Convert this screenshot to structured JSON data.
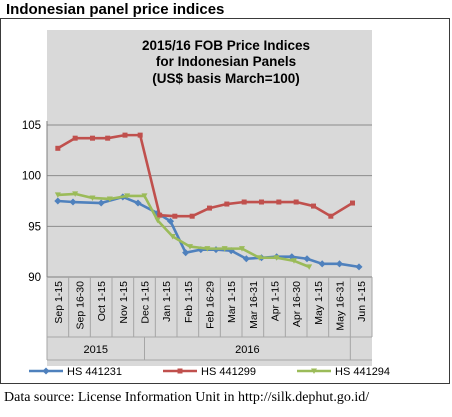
{
  "page": {
    "heading": "Indonesian panel price indices",
    "source_note": "Data source: License Information Unit in http://silk.dephut.go.id/"
  },
  "chart_data": {
    "type": "line",
    "title_lines": [
      "2015/16 FOB Price Indices",
      "for Indonesian Panels",
      "(US$ basis March=100)"
    ],
    "x": [
      "Sep 1-15",
      "Sep 16-30",
      "Oct 1-15",
      "Nov 1-15",
      "Dec 1-15",
      "Jan 1-15",
      "Feb 1-15",
      "Feb 16-29",
      "Mar 1-15",
      "Mar 16-31",
      "Apr 1-15",
      "Apr 16-30",
      "May 1-15",
      "May 16-31",
      "Jun 1-15"
    ],
    "x_positions": [
      0,
      1,
      2,
      3,
      4,
      5,
      6,
      7,
      8,
      9,
      10,
      11,
      12,
      13,
      14
    ],
    "year_groups": [
      {
        "label": "2015",
        "start": 0,
        "end": 4.5
      },
      {
        "label": "2016",
        "start": 4.5,
        "end": 14
      }
    ],
    "series": [
      {
        "name": "HS 441231",
        "color": "#4f81bd",
        "points": [
          [
            0,
            97.5
          ],
          [
            0.7,
            97.4
          ],
          [
            2,
            97.3
          ],
          [
            3,
            97.9
          ],
          [
            3.7,
            97.3
          ],
          [
            4.6,
            96.3
          ],
          [
            5.2,
            95.5
          ],
          [
            5.9,
            92.4
          ],
          [
            6.6,
            92.7
          ],
          [
            7.3,
            92.7
          ],
          [
            8,
            92.6
          ],
          [
            8.7,
            91.8
          ],
          [
            9.4,
            91.9
          ],
          [
            10.1,
            92.0
          ],
          [
            10.8,
            92.0
          ],
          [
            11.5,
            91.8
          ],
          [
            12.2,
            91.3
          ],
          [
            13,
            91.3
          ],
          [
            13.9,
            91.0
          ]
        ]
      },
      {
        "name": "HS 441299",
        "color": "#c0504d",
        "points": [
          [
            0,
            102.7
          ],
          [
            0.8,
            103.7
          ],
          [
            1.6,
            103.7
          ],
          [
            2.3,
            103.7
          ],
          [
            3.1,
            104.0
          ],
          [
            3.8,
            104.0
          ],
          [
            4.7,
            96.1
          ],
          [
            5.4,
            96.0
          ],
          [
            6.2,
            96.0
          ],
          [
            7,
            96.8
          ],
          [
            7.8,
            97.2
          ],
          [
            8.6,
            97.4
          ],
          [
            9.4,
            97.4
          ],
          [
            10.2,
            97.4
          ],
          [
            11,
            97.4
          ],
          [
            11.8,
            97.0
          ],
          [
            12.6,
            96.0
          ],
          [
            13.6,
            97.3
          ]
        ]
      },
      {
        "name": "HS 441294",
        "color": "#9bbb59",
        "points": [
          [
            0,
            98.1
          ],
          [
            0.8,
            98.2
          ],
          [
            1.6,
            97.8
          ],
          [
            2.4,
            97.7
          ],
          [
            3.2,
            98.0
          ],
          [
            4.0,
            98.0
          ],
          [
            4.6,
            95.6
          ],
          [
            5.3,
            94.0
          ],
          [
            6.1,
            93.0
          ],
          [
            6.9,
            92.8
          ],
          [
            7.7,
            92.8
          ],
          [
            8.5,
            92.8
          ],
          [
            9.3,
            91.9
          ],
          [
            10.1,
            91.9
          ],
          [
            10.9,
            91.6
          ],
          [
            11.6,
            91.0
          ]
        ]
      }
    ],
    "ylim": [
      90,
      105
    ],
    "yticks": [
      90,
      95,
      100,
      105
    ],
    "legend_position": "bottom",
    "grid": true
  }
}
